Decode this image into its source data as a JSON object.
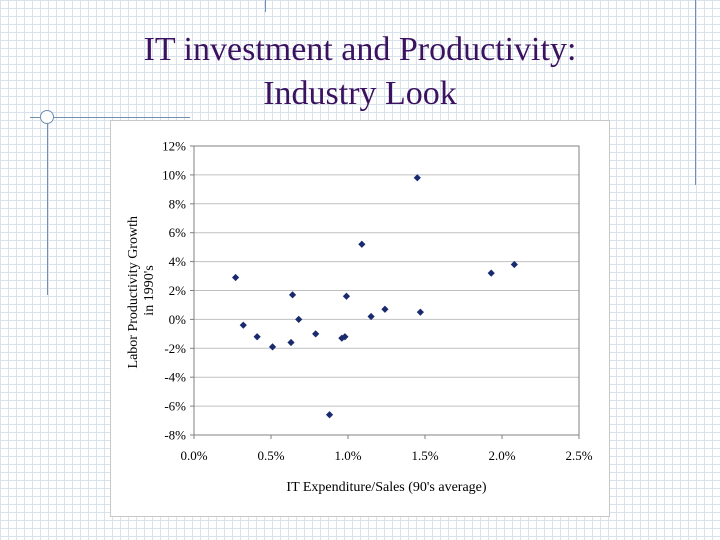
{
  "slide": {
    "title_line1": "IT investment and Productivity:",
    "title_line2": "Industry Look"
  },
  "colors": {
    "title": "#3a1260",
    "marker": "#1a2a6e",
    "background_grid": "#d9e2ea",
    "decor_lines": "#6f8fb3"
  },
  "chart_data": {
    "type": "scatter",
    "title": "",
    "xlabel": "IT Expenditure/Sales (90's average)",
    "ylabel_line1": "Labor Productivity Growth",
    "ylabel_line2": "in 1990's",
    "xlim": [
      0.0,
      2.5
    ],
    "ylim": [
      -8,
      12
    ],
    "x_unit": "%",
    "y_unit": "%",
    "x_ticks": [
      "0.0%",
      "0.5%",
      "1.0%",
      "1.5%",
      "2.0%",
      "2.5%"
    ],
    "y_ticks": [
      "12%",
      "10%",
      "8%",
      "6%",
      "4%",
      "2%",
      "0%",
      "-2%",
      "-4%",
      "-6%",
      "-8%"
    ],
    "grid": {
      "horizontal": true,
      "vertical": false
    },
    "legend": "none",
    "marker": "diamond",
    "points": [
      {
        "x": 0.27,
        "y": 2.9
      },
      {
        "x": 0.32,
        "y": -0.4
      },
      {
        "x": 0.41,
        "y": -1.2
      },
      {
        "x": 0.51,
        "y": -1.9
      },
      {
        "x": 0.63,
        "y": -1.6
      },
      {
        "x": 0.64,
        "y": 1.7
      },
      {
        "x": 0.68,
        "y": 0.0
      },
      {
        "x": 0.79,
        "y": -1.0
      },
      {
        "x": 0.88,
        "y": -6.6
      },
      {
        "x": 0.96,
        "y": -1.3
      },
      {
        "x": 0.98,
        "y": -1.2
      },
      {
        "x": 0.99,
        "y": 1.6
      },
      {
        "x": 1.09,
        "y": 5.2
      },
      {
        "x": 1.15,
        "y": 0.2
      },
      {
        "x": 1.24,
        "y": 0.7
      },
      {
        "x": 1.45,
        "y": 9.8
      },
      {
        "x": 1.47,
        "y": 0.5
      },
      {
        "x": 1.93,
        "y": 3.2
      },
      {
        "x": 2.08,
        "y": 3.8
      }
    ]
  }
}
